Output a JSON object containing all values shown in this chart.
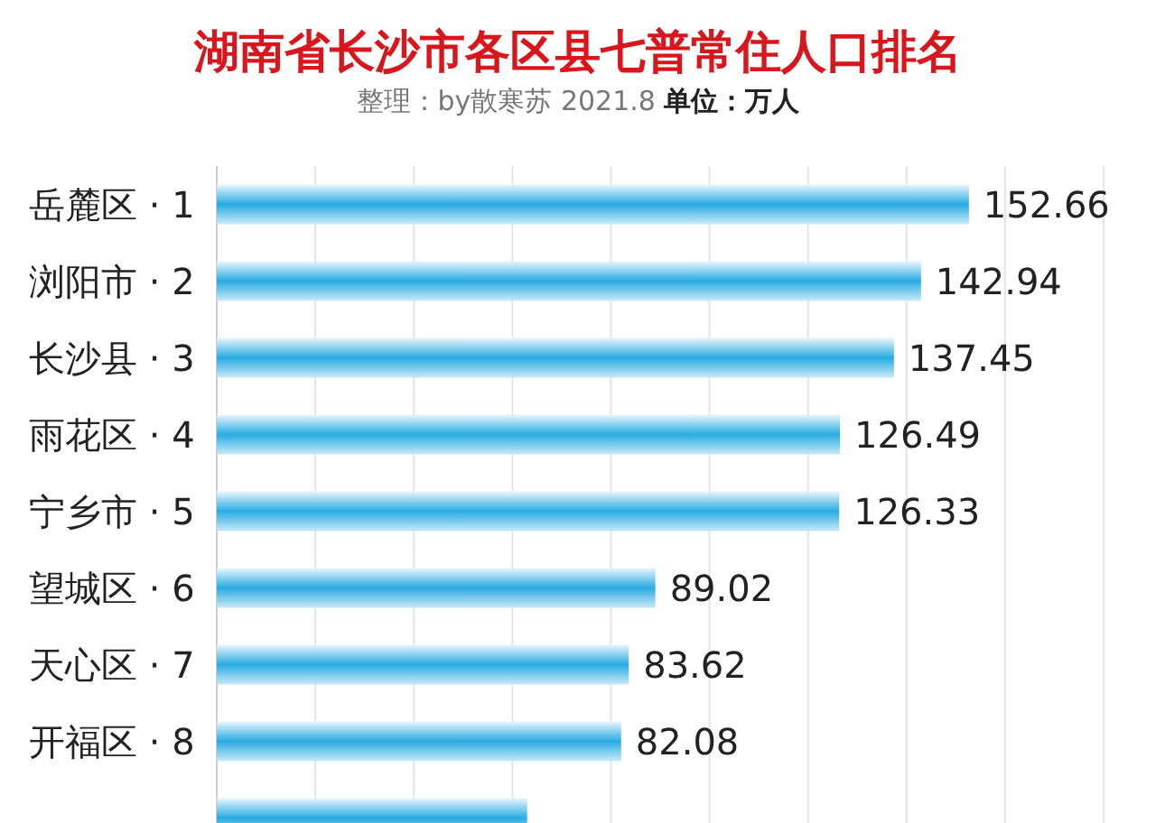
{
  "chart_data": {
    "type": "bar",
    "orientation": "horizontal",
    "title": "湖南省长沙市各区县七普常住人口排名",
    "subtitle": "整理：by散寒苏 2021.8 **单位：万人**",
    "categories": [
      "岳麓区 · 1",
      "浏阳市 · 2",
      "长沙县 · 3",
      "雨花区 · 4",
      "宁乡市 · 5",
      "望城区 · 6",
      "天心区 · 7",
      "开福区 · 8",
      null
    ],
    "values": [
      152.66,
      142.94,
      137.45,
      126.49,
      126.33,
      89.02,
      83.62,
      82.08,
      63
    ],
    "value_labels": [
      "152.66",
      "142.94",
      "137.45",
      "126.49",
      "126.33",
      "89.02",
      "83.62",
      "82.08",
      null
    ],
    "color": "#29abe2",
    "grid": "x",
    "tick_labels": "y",
    "xlim": [
      0,
      180
    ],
    "xticks": [
      {
        "value": 0,
        "label": null
      },
      {
        "value": 20,
        "label": null
      },
      {
        "value": 40,
        "label": null
      },
      {
        "value": 60,
        "label": null
      },
      {
        "value": 80,
        "label": null
      },
      {
        "value": 100,
        "label": null
      },
      {
        "value": 120,
        "label": null
      },
      {
        "value": 140,
        "label": null
      },
      {
        "value": 160,
        "label": null
      },
      {
        "value": 180,
        "label": null
      }
    ]
  }
}
